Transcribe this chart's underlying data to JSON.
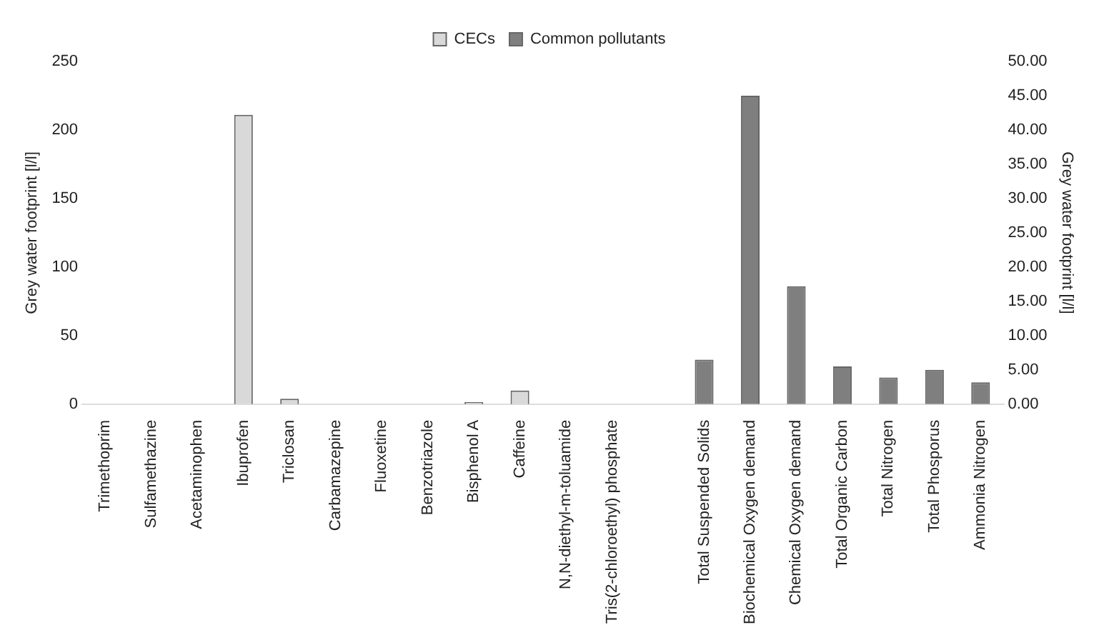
{
  "chart_data": {
    "type": "bar",
    "categories": [
      "Trimethoprim",
      "Sulfamethazine",
      "Acetaminophen",
      "Ibuprofen",
      "Triclosan",
      "Carbamazepine",
      "Fluoxetine",
      "Benzotriazole",
      "Bisphenol A",
      "Caffeine",
      "N,N-diethyl-m-toluamide",
      "Tris(2-chloroethyl) phosphate",
      null,
      "Total Suspended Solids",
      "Biochemical Oxygen demand",
      "Chemical Oxygen demand",
      "Total Organic Carbon",
      "Total Nitrogen",
      "Total Phosporus",
      "Ammonia Nitrogen"
    ],
    "series": [
      {
        "name": "CECs",
        "color": "#d9d9d9",
        "values": [
          0,
          0,
          0,
          211,
          4,
          0,
          0,
          0,
          1.5,
          10,
          0,
          0,
          null,
          null,
          null,
          null,
          null,
          null,
          null,
          null
        ]
      },
      {
        "name": "Common pollutants",
        "color": "#7f7f7f",
        "axis": "y2",
        "values": [
          null,
          null,
          null,
          null,
          null,
          null,
          null,
          null,
          null,
          null,
          null,
          null,
          null,
          6.5,
          45,
          17.2,
          5.5,
          3.9,
          5,
          3.2
        ]
      }
    ],
    "ylabel": "Grey water footprint [l/l]",
    "y2label": "Grey water footprint [l/l]",
    "ylim": [
      0,
      250
    ],
    "yticks": [
      0,
      50,
      100,
      150,
      200,
      250
    ],
    "y2lim": [
      0,
      50
    ],
    "y2ticks": [
      {
        "value": 0,
        "label": "0.00"
      },
      {
        "value": 5,
        "label": "5.00"
      },
      {
        "value": 10,
        "label": "10.00"
      },
      {
        "value": 15,
        "label": "15.00"
      },
      {
        "value": 20,
        "label": "20.00"
      },
      {
        "value": 25,
        "label": "25.00"
      },
      {
        "value": 30,
        "label": "30.00"
      },
      {
        "value": 35,
        "label": "35.00"
      },
      {
        "value": 40,
        "label": "40.00"
      },
      {
        "value": 45,
        "label": "45.00"
      },
      {
        "value": 50,
        "label": "50.00"
      }
    ],
    "legend": "top",
    "grid": false
  }
}
